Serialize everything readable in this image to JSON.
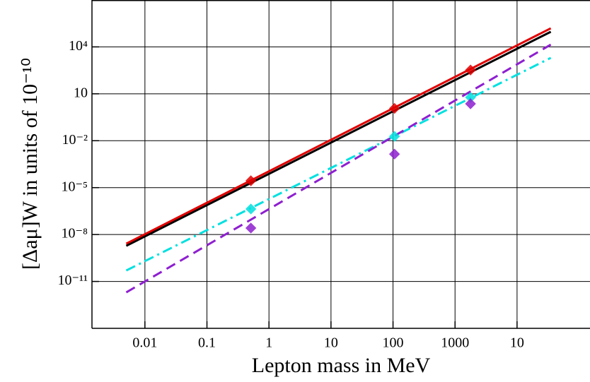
{
  "chart_data": {
    "type": "line",
    "xlabel": "Lepton mass in MeV",
    "ylabel": "[Δaμ]W in units of 10⁻¹⁰",
    "xscale": "log",
    "yscale": "log",
    "grid": true,
    "xlim": [
      0.0014,
      150000
    ],
    "ylim": [
      1e-14,
      10000000.0
    ],
    "xticks": [
      0.01,
      0.1,
      1,
      10,
      100,
      1000,
      {
        "value": 10000,
        "label": "10"
      }
    ],
    "yticks": [
      {
        "value": 10000,
        "label": "10⁴"
      },
      10,
      {
        "value": 0.01,
        "label": "10⁻²"
      },
      {
        "value": 1e-05,
        "label": "10⁻⁵"
      },
      {
        "value": 1e-08,
        "label": "10⁻⁸"
      },
      {
        "value": 1e-11,
        "label": "10⁻¹¹"
      }
    ],
    "series": [
      {
        "color": "#000000",
        "style": "solid",
        "x": [
          0.005,
          35000
        ],
        "values": [
          1.9e-09,
          93000
        ]
      },
      {
        "color": "#e00000",
        "style": "solid",
        "x": [
          0.005,
          35000
        ],
        "values": [
          2.6e-09,
          155000
        ]
      },
      {
        "color": "#00e0e0",
        "style": "dashdot",
        "x": [
          0.005,
          35000
        ],
        "values": [
          5e-11,
          2000
        ]
      },
      {
        "color": "#8e1fd0",
        "style": "dashed",
        "x": [
          0.005,
          35000
        ],
        "values": [
          2e-12,
          14000
        ]
      },
      {
        "color": "#e00000",
        "style": "none",
        "marker": "diamond",
        "x": [
          0.511,
          105.66,
          1776.86
        ],
        "values": [
          2.75e-05,
          1.17,
          333
        ]
      },
      {
        "color": "#00e0e0",
        "style": "none",
        "marker": "diamond",
        "x": [
          0.511,
          105.66,
          1776.86
        ],
        "values": [
          4.3e-07,
          0.019,
          5.9
        ]
      },
      {
        "color": "#8e1fd0",
        "style": "none",
        "marker": "diamond",
        "x": [
          0.511,
          105.66,
          1776.86
        ],
        "values": [
          2.6e-08,
          0.0014,
          2.3
        ]
      }
    ]
  }
}
